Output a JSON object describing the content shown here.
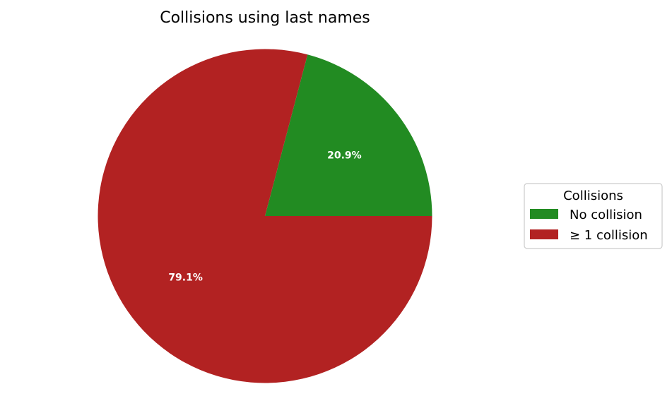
{
  "chart_data": {
    "type": "pie",
    "title": "Collisions using last names",
    "labels": [
      "No collision",
      "≥ 1 collision"
    ],
    "values": [
      20.9,
      79.1
    ],
    "value_labels": [
      "20.9%",
      "79.1%"
    ],
    "colors": [
      "#228b22",
      "#b22222"
    ],
    "start_angle_deg": 0,
    "direction": "counterclockwise",
    "legend": {
      "title": "Collisions",
      "placement": "right"
    }
  }
}
